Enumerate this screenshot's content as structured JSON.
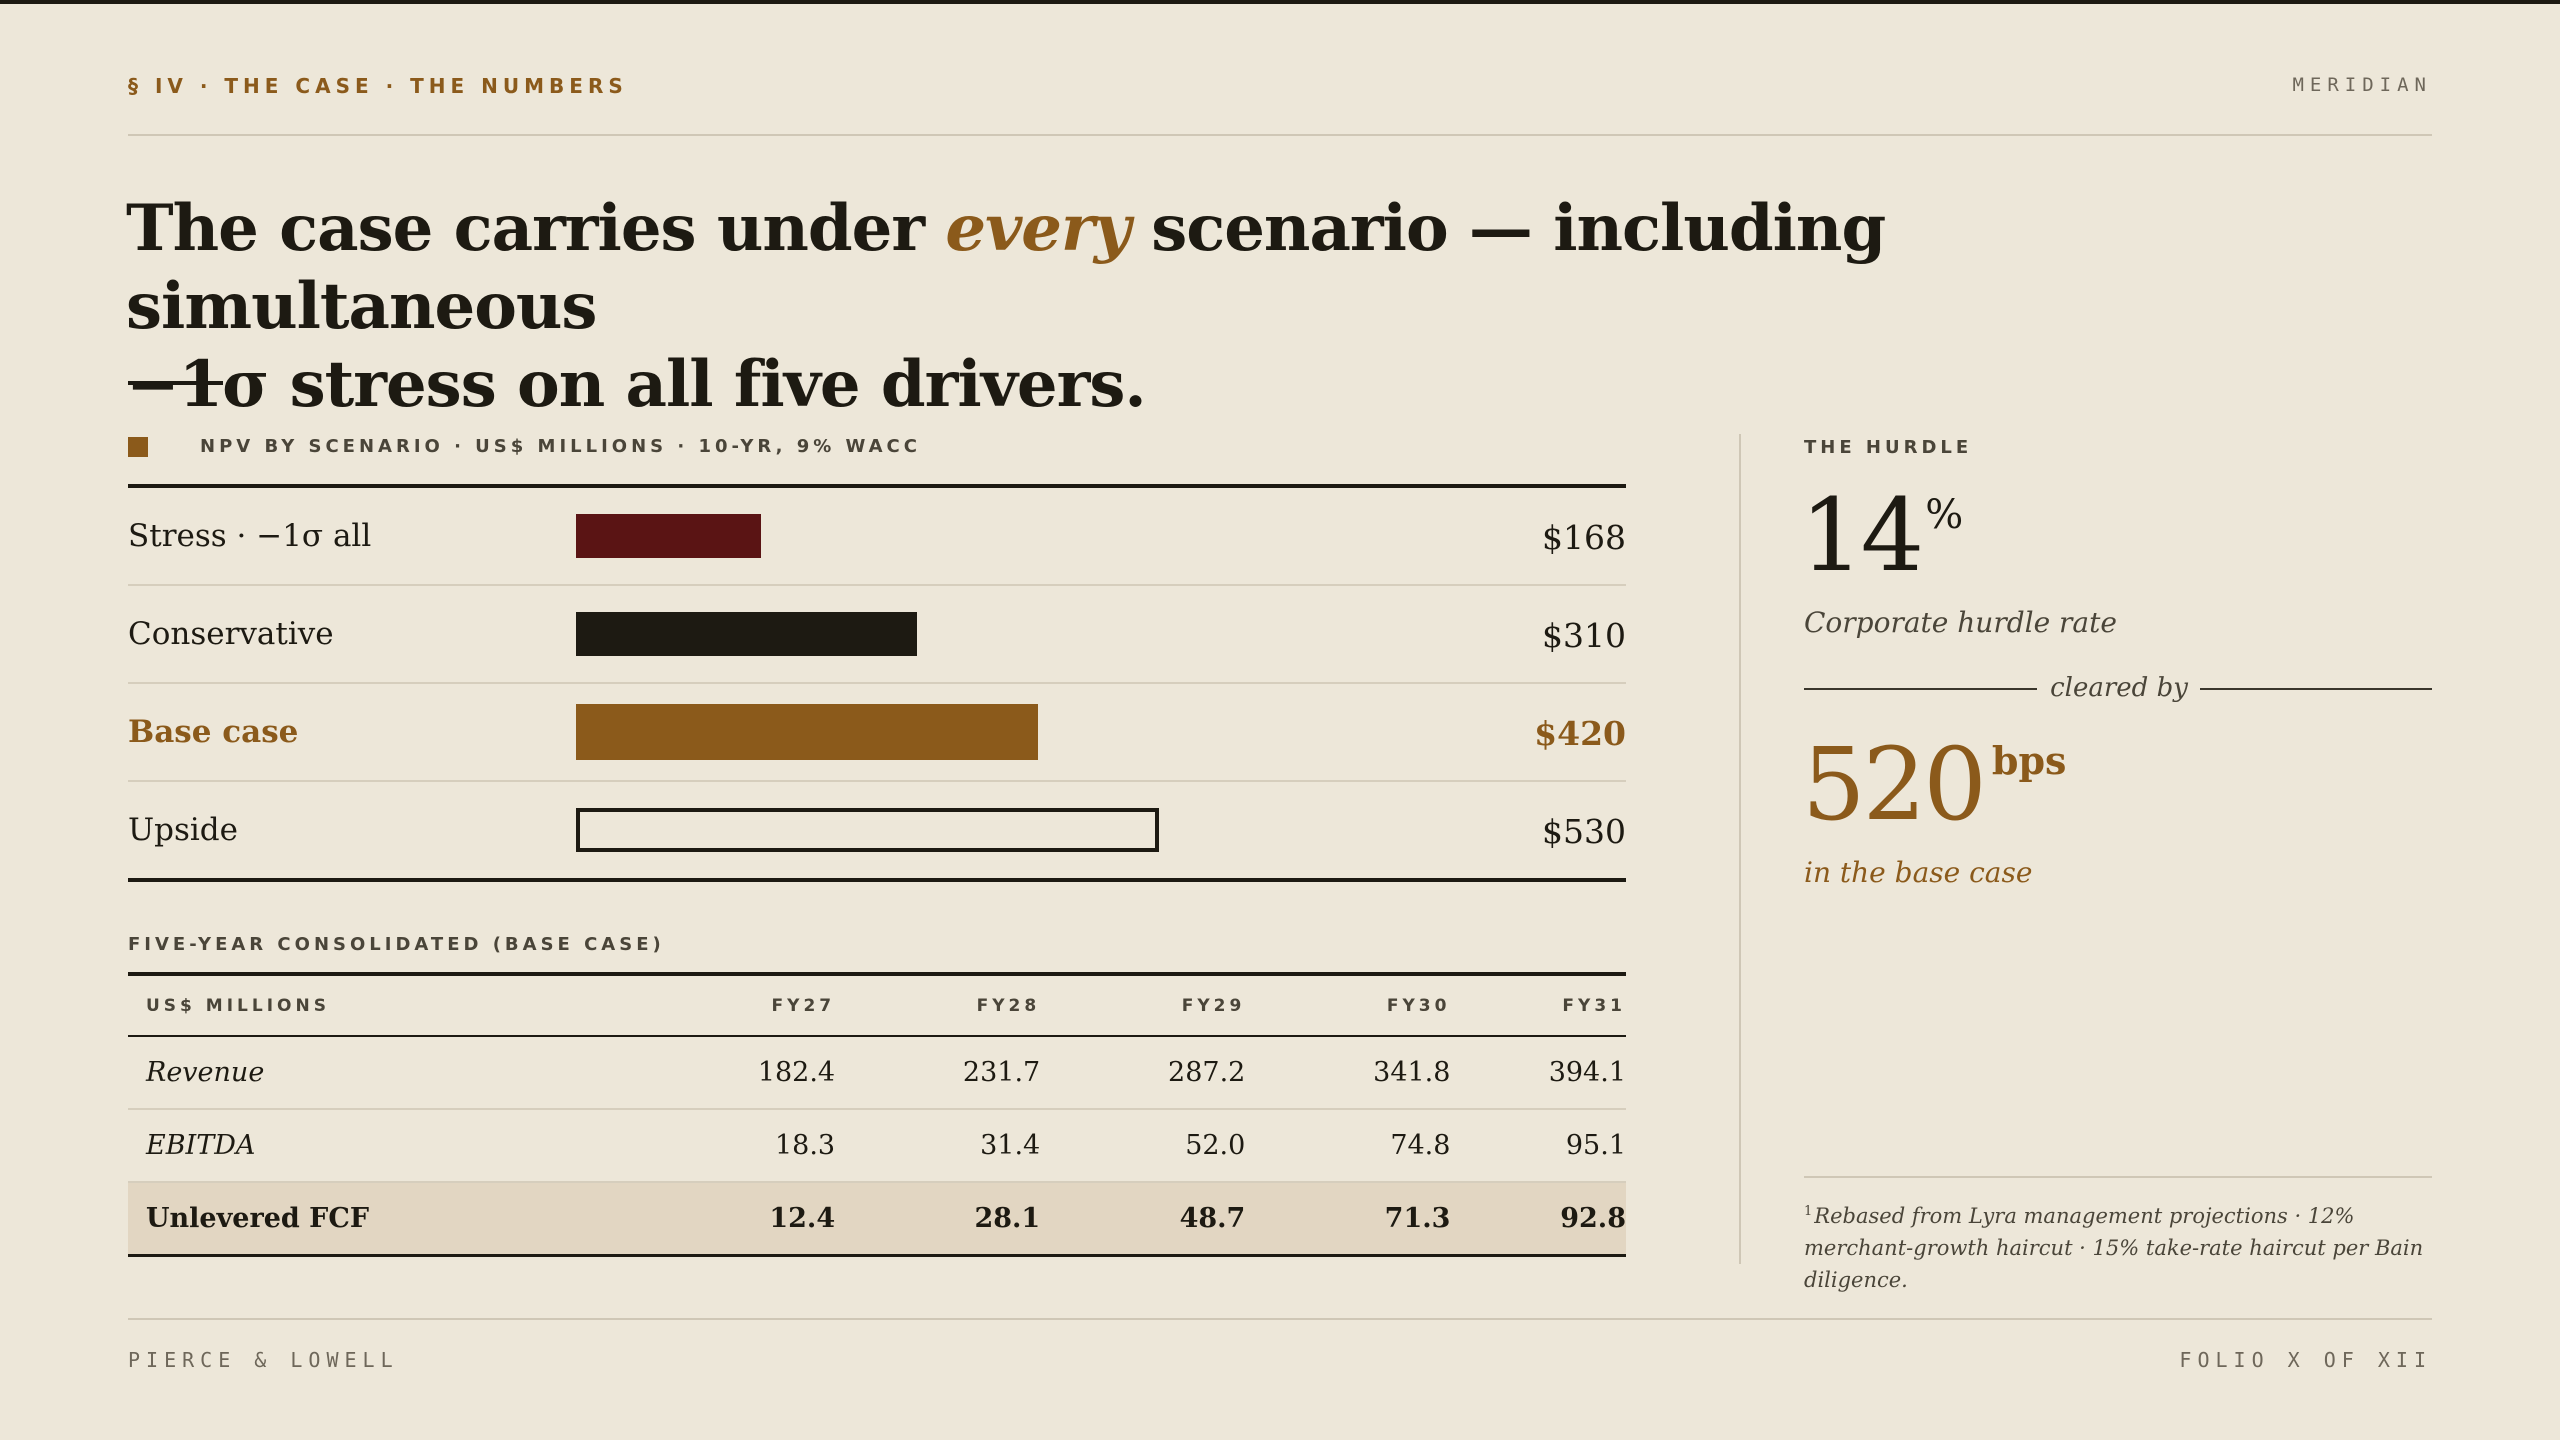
{
  "header": {
    "eyebrow": "§ IV · THE CASE · THE NUMBERS",
    "brand": "MERIDIAN"
  },
  "headline": {
    "before": "The case carries under ",
    "emphasis": "every",
    "after_line1": " scenario — including simultaneous",
    "line2": "−1σ stress on all five drivers."
  },
  "chart_data": {
    "type": "bar",
    "orientation": "horizontal",
    "title": "NPV BY SCENARIO · US$ MILLIONS · 10-YR, 9% WACC",
    "categories": [
      "Stress · −1σ all",
      "Conservative",
      "Base case",
      "Upside"
    ],
    "values": [
      168,
      310,
      420,
      530
    ],
    "value_labels": [
      "$168",
      "$310",
      "$420",
      "$530"
    ],
    "unit": "US$ millions",
    "highlight": "Base case",
    "colors": [
      "#5a1414",
      "#1d1a12",
      "#8b5a1b",
      "outline"
    ],
    "grid": false,
    "legend": "none"
  },
  "hurdle": {
    "label": "THE HURDLE",
    "rate": "14",
    "rate_unit": "%",
    "caption": "Corporate hurdle rate",
    "cleared_by": "cleared by",
    "margin": "520",
    "margin_unit": "bps",
    "margin_caption": "in the base case",
    "footnote_mark": "1",
    "footnote": "Rebased from Lyra management projections · 12% merchant-growth haircut · 15% take-rate haircut per Bain diligence."
  },
  "table": {
    "title": "FIVE-YEAR CONSOLIDATED (BASE CASE)",
    "columns": [
      "US$ MILLIONS",
      "FY27",
      "FY28",
      "FY29",
      "FY30",
      "FY31"
    ],
    "rows": [
      {
        "label": "Revenue",
        "values": [
          "182.4",
          "231.7",
          "287.2",
          "341.8",
          "394.1"
        ]
      },
      {
        "label": "EBITDA",
        "values": [
          "18.3",
          "31.4",
          "52.0",
          "74.8",
          "95.1"
        ]
      },
      {
        "label": "Unlevered FCF",
        "values": [
          "12.4",
          "28.1",
          "48.7",
          "71.3",
          "92.8"
        ]
      }
    ]
  },
  "footer": {
    "left": "PIERCE & LOWELL",
    "right": "FOLIO X OF XII"
  },
  "colors": {
    "background": "#ede7d9",
    "ink": "#1d1a12",
    "accent": "#8b5a1b",
    "stress": "#5a1414",
    "total_row": "#e2d6c2"
  }
}
